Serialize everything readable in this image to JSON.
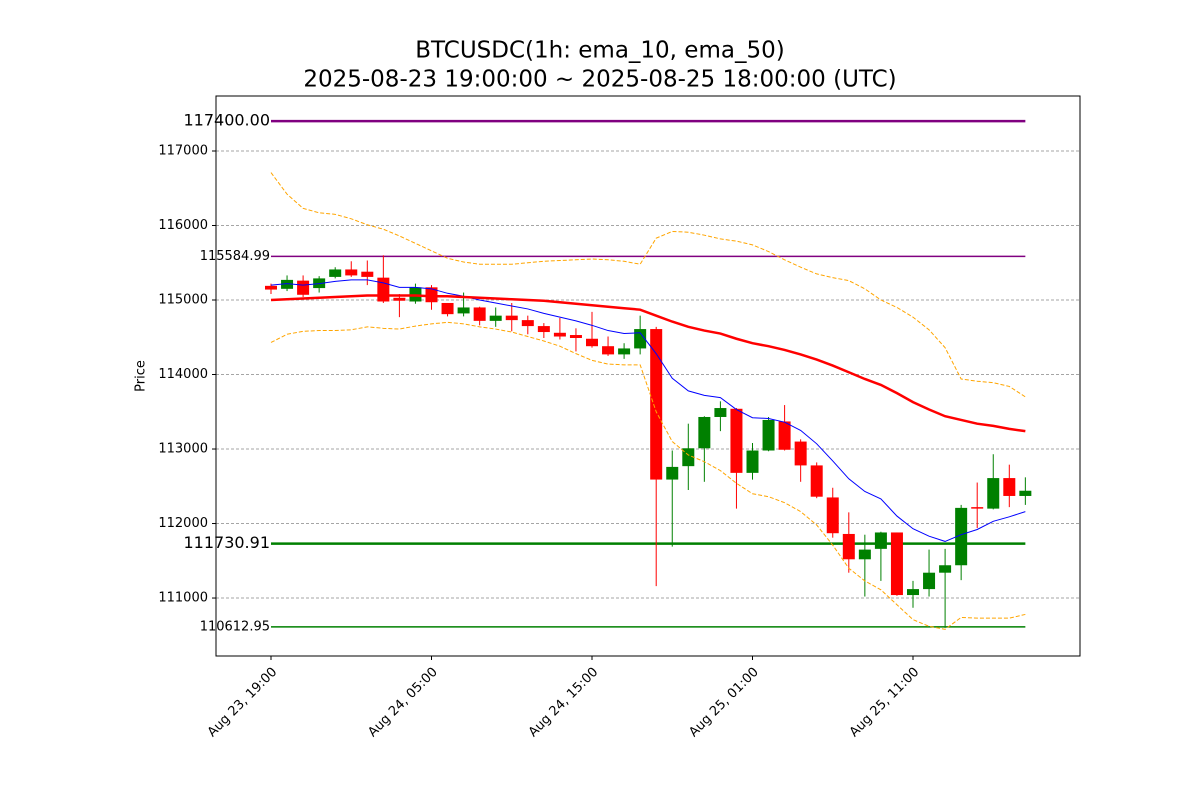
{
  "chart_data": {
    "type": "candlestick",
    "title": "BTCUSDC(1h: ema_10, ema_50)",
    "subtitle": "2025-08-23 19:00:00 ~ 2025-08-25 18:00:00 (UTC)",
    "ylabel": "Price",
    "categories": [
      "Aug 23, 19:00",
      null,
      null,
      null,
      null,
      null,
      null,
      null,
      null,
      null,
      "Aug 24, 05:00",
      null,
      null,
      null,
      null,
      null,
      null,
      null,
      null,
      null,
      "Aug 24, 15:00",
      null,
      null,
      null,
      null,
      null,
      null,
      null,
      null,
      null,
      "Aug 25, 01:00",
      null,
      null,
      null,
      null,
      null,
      null,
      null,
      null,
      null,
      "Aug 25, 11:00",
      null,
      null,
      null,
      null,
      null,
      null,
      null
    ],
    "open": [
      115190,
      115150,
      115260,
      115160,
      115310,
      115410,
      115380,
      115300,
      115030,
      114980,
      115170,
      114960,
      114820,
      114900,
      114720,
      114790,
      114730,
      114650,
      114560,
      114530,
      114480,
      114380,
      114270,
      114350,
      114610,
      112590,
      112770,
      113010,
      113430,
      113540,
      112680,
      112980,
      113370,
      113100,
      112780,
      112350,
      111860,
      111520,
      111660,
      111880,
      111040,
      111120,
      111340,
      111440,
      112220,
      112200,
      112610,
      112370
    ],
    "high": [
      115220,
      115330,
      115330,
      115320,
      115440,
      115520,
      115530,
      115600,
      115080,
      115220,
      115200,
      114960,
      115100,
      114910,
      114900,
      114960,
      114790,
      114690,
      114760,
      114620,
      114840,
      114510,
      114420,
      114790,
      114640,
      112980,
      113340,
      113440,
      113640,
      113550,
      113080,
      113430,
      113590,
      113130,
      112820,
      112480,
      112150,
      111850,
      111890,
      111880,
      111230,
      111650,
      111660,
      112250,
      112550,
      112930,
      112790,
      112620
    ],
    "low": [
      115080,
      115120,
      115040,
      115100,
      115290,
      115310,
      115200,
      114960,
      114770,
      114950,
      114870,
      114780,
      114780,
      114660,
      114640,
      114580,
      114540,
      114490,
      114470,
      114310,
      114360,
      114250,
      114210,
      114270,
      111160,
      111690,
      112450,
      112560,
      113240,
      112200,
      112590,
      112970,
      112980,
      112560,
      112340,
      111810,
      111340,
      111020,
      111230,
      111030,
      110870,
      111020,
      110600,
      111240,
      111940,
      112190,
      112220,
      112250
    ],
    "close": [
      115140,
      115270,
      115070,
      115290,
      115410,
      115330,
      115310,
      114980,
      114990,
      115170,
      114970,
      114810,
      114900,
      114720,
      114790,
      114730,
      114650,
      114570,
      114510,
      114490,
      114380,
      114270,
      114350,
      114610,
      112590,
      112760,
      113010,
      113430,
      113550,
      112680,
      112980,
      113390,
      112990,
      112780,
      112360,
      111870,
      111520,
      111650,
      111880,
      111040,
      111120,
      111340,
      111440,
      112210,
      112200,
      112610,
      112370,
      112440
    ],
    "up_color": "green",
    "down_color": "red",
    "series": [
      {
        "color": "blue",
        "width": 1,
        "dashed": false,
        "values": [
          115200,
          115220,
          115200,
          115220,
          115250,
          115270,
          115270,
          115230,
          115170,
          115170,
          115150,
          115090,
          115050,
          115000,
          114960,
          114920,
          114880,
          114820,
          114770,
          114720,
          114660,
          114590,
          114550,
          114560,
          114280,
          113950,
          113780,
          113720,
          113690,
          113530,
          113420,
          113410,
          113360,
          113250,
          113070,
          112840,
          112600,
          112430,
          112330,
          112100,
          111930,
          111830,
          111760,
          111850,
          111920,
          112030,
          112090,
          112160
        ]
      },
      {
        "color": "red",
        "width": 2.5,
        "dashed": false,
        "values": [
          115000,
          115010,
          115020,
          115030,
          115040,
          115050,
          115060,
          115060,
          115060,
          115060,
          115050,
          115050,
          115040,
          115030,
          115020,
          115010,
          115000,
          114990,
          114970,
          114950,
          114930,
          114910,
          114890,
          114870,
          114790,
          114710,
          114640,
          114590,
          114550,
          114480,
          114420,
          114380,
          114330,
          114270,
          114200,
          114120,
          114030,
          113940,
          113860,
          113750,
          113630,
          113530,
          113440,
          113390,
          113340,
          113310,
          113270,
          113240
        ]
      },
      {
        "color": "orange",
        "width": 1,
        "dashed": true,
        "values": [
          116710,
          116420,
          116230,
          116170,
          116150,
          116090,
          116010,
          115950,
          115860,
          115760,
          115660,
          115560,
          115510,
          115480,
          115480,
          115480,
          115500,
          115520,
          115530,
          115540,
          115550,
          115540,
          115520,
          115480,
          115830,
          115920,
          115910,
          115870,
          115820,
          115790,
          115740,
          115650,
          115540,
          115440,
          115350,
          115300,
          115260,
          115150,
          115000,
          114900,
          114770,
          114600,
          114360,
          113940,
          113910,
          113890,
          113840,
          113700
        ]
      },
      {
        "color": "orange",
        "width": 1,
        "dashed": true,
        "values": [
          114430,
          114540,
          114580,
          114590,
          114590,
          114600,
          114640,
          114620,
          114610,
          114650,
          114680,
          114700,
          114680,
          114640,
          114610,
          114570,
          114510,
          114450,
          114380,
          114280,
          114190,
          114140,
          114130,
          114130,
          113500,
          113100,
          112920,
          112830,
          112710,
          112540,
          112400,
          112360,
          112280,
          112160,
          111980,
          111710,
          111400,
          111230,
          111110,
          110910,
          110710,
          110620,
          110580,
          110740,
          110730,
          110730,
          110730,
          110780
        ]
      }
    ],
    "hlines": [
      {
        "value": 117400,
        "label": "117400.00",
        "color": "purple",
        "width": 2.5
      },
      {
        "value": 115584.99,
        "label": "115584.99",
        "color": "purple",
        "width": 1.5
      },
      {
        "value": 111730.91,
        "label": "111730.91",
        "color": "green",
        "width": 2.5
      },
      {
        "value": 110612.95,
        "label": "110612.95",
        "color": "green",
        "width": 1.5
      }
    ],
    "ylim": [
      110222,
      117738
    ],
    "yticks": [
      111000,
      112000,
      113000,
      114000,
      115000,
      116000,
      117000
    ],
    "grid": true
  }
}
